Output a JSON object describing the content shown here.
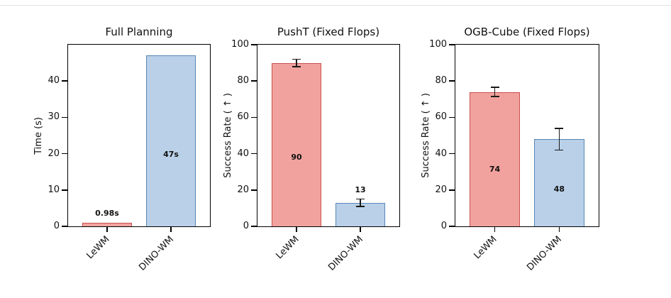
{
  "colors": {
    "lewm_fill": "#f2a29e",
    "lewm_edge": "#c8504e",
    "dino_fill": "#b9d0e8",
    "dino_edge": "#5687b8",
    "error_bar": "#1a1a1a",
    "axis": "#000000",
    "background": "#ffffff"
  },
  "chart_data": [
    {
      "type": "bar",
      "title": "Full Planning",
      "ylabel": "Time (s)",
      "categories": [
        "LeWM",
        "DINO-WM"
      ],
      "values": [
        0.98,
        47
      ],
      "value_labels": [
        "0.98s",
        "47s"
      ],
      "errors": [
        0,
        0
      ],
      "ylim": [
        0,
        50
      ],
      "yticks": [
        0,
        10,
        20,
        30,
        40
      ],
      "grid": false,
      "legend": "none"
    },
    {
      "type": "bar",
      "title": "PushT (Fixed Flops)",
      "ylabel": "Success Rate ( ↑ )",
      "categories": [
        "LeWM",
        "DINO-WM"
      ],
      "values": [
        90,
        13
      ],
      "value_labels": [
        "90",
        "13"
      ],
      "errors": [
        2,
        2
      ],
      "ylim": [
        0,
        100
      ],
      "yticks": [
        0,
        20,
        40,
        60,
        80,
        100
      ],
      "grid": false,
      "legend": "none"
    },
    {
      "type": "bar",
      "title": "OGB-Cube (Fixed Flops)",
      "ylabel": "Success Rate ( ↑ )",
      "categories": [
        "LeWM",
        "DINO-WM"
      ],
      "values": [
        74,
        48
      ],
      "value_labels": [
        "74",
        "48"
      ],
      "errors": [
        2.5,
        6
      ],
      "ylim": [
        0,
        100
      ],
      "yticks": [
        0,
        20,
        40,
        60,
        80,
        100
      ],
      "grid": false,
      "legend": "none"
    }
  ]
}
